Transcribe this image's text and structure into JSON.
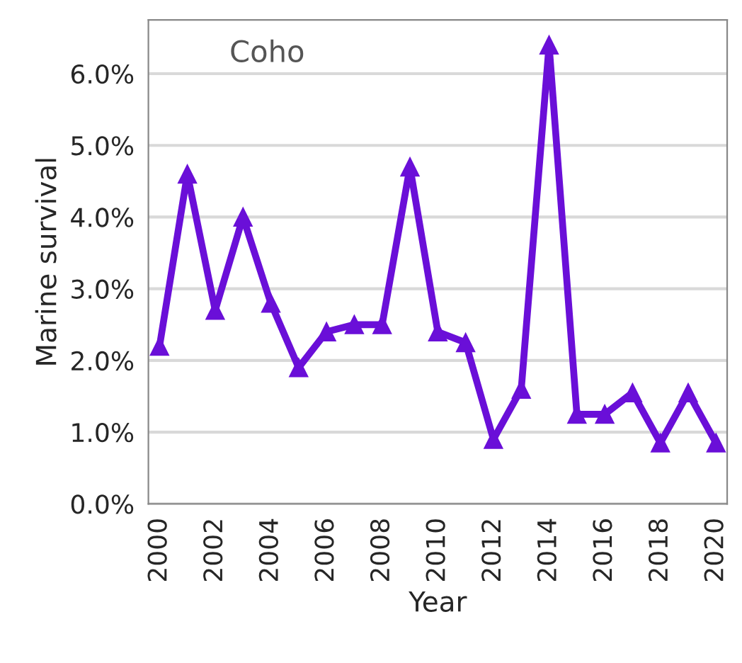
{
  "chart_data": {
    "type": "line",
    "xlabel": "Year",
    "ylabel": "Marine survival",
    "annotations": [
      "Coho"
    ],
    "x": [
      2000,
      2001,
      2002,
      2003,
      2004,
      2005,
      2006,
      2007,
      2008,
      2009,
      2010,
      2011,
      2012,
      2013,
      2014,
      2015,
      2016,
      2017,
      2018,
      2019,
      2020
    ],
    "series": [
      {
        "color": "#6a0fd8",
        "values": [
          2.2,
          4.6,
          2.7,
          4.0,
          2.8,
          1.9,
          2.4,
          2.5,
          2.5,
          4.7,
          2.4,
          2.25,
          0.9,
          1.6,
          6.4,
          1.25,
          1.25,
          1.55,
          0.85,
          1.55,
          0.85
        ]
      }
    ],
    "xlim": [
      1999.6,
      2020.4
    ],
    "xticks": [
      2000,
      2002,
      2004,
      2006,
      2008,
      2010,
      2012,
      2014,
      2016,
      2018,
      2020
    ],
    "ylim": [
      0,
      6.75
    ],
    "yticks": [
      {
        "value": 0,
        "label": "0.0%"
      },
      {
        "value": 1,
        "label": "1.0%"
      },
      {
        "value": 2,
        "label": "2.0%"
      },
      {
        "value": 3,
        "label": "3.0%"
      },
      {
        "value": 4,
        "label": "4.0%"
      },
      {
        "value": 5,
        "label": "5.0%"
      },
      {
        "value": 6,
        "label": "6.0%"
      }
    ],
    "grid": "y",
    "marker": "triangle",
    "line_style": "solid"
  }
}
